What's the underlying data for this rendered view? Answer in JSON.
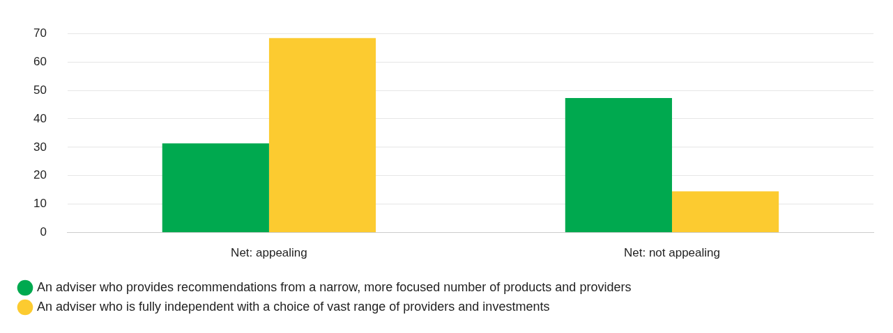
{
  "chart_data": {
    "type": "bar",
    "categories": [
      "Net: appealing",
      "Net: not appealing"
    ],
    "series": [
      {
        "name": "An adviser who provides recommendations from a narrow, more focused number of products and providers",
        "color": "#00a94f",
        "values": [
          31.4,
          47.3
        ]
      },
      {
        "name": "An adviser who is fully independent with a choice of vast range of providers and investments",
        "color": "#fccb30",
        "values": [
          68.4,
          14.5
        ]
      }
    ],
    "ylim": [
      0,
      70
    ],
    "yticks": [
      0,
      10,
      20,
      30,
      40,
      50,
      60,
      70
    ],
    "grid": "y",
    "legend": "bottom left"
  }
}
